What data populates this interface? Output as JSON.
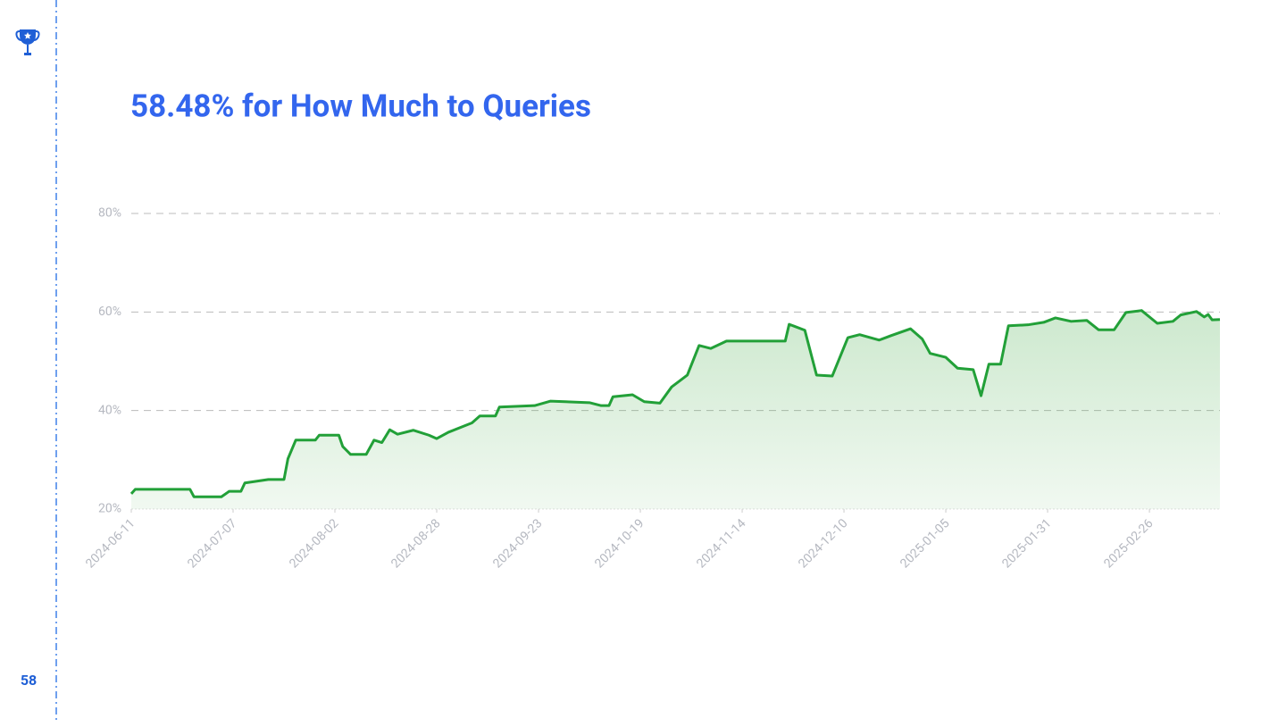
{
  "slide_number": "58",
  "chart_data": {
    "type": "area",
    "title": "58.48% for How Much to Queries",
    "x": [
      "2024-06-11",
      "2024-06-12",
      "2024-06-26",
      "2024-06-27",
      "2024-07-04",
      "2024-07-06",
      "2024-07-09",
      "2024-07-10",
      "2024-07-16",
      "2024-07-20",
      "2024-07-21",
      "2024-07-23",
      "2024-07-28",
      "2024-07-29",
      "2024-08-03",
      "2024-08-04",
      "2024-08-06",
      "2024-08-10",
      "2024-08-12",
      "2024-08-14",
      "2024-08-16",
      "2024-08-18",
      "2024-08-22",
      "2024-08-26",
      "2024-08-28",
      "2024-08-31",
      "2024-09-06",
      "2024-09-08",
      "2024-09-12",
      "2024-09-13",
      "2024-09-22",
      "2024-09-26",
      "2024-10-06",
      "2024-10-09",
      "2024-10-11",
      "2024-10-12",
      "2024-10-17",
      "2024-10-20",
      "2024-10-24",
      "2024-10-27",
      "2024-10-31",
      "2024-11-03",
      "2024-11-06",
      "2024-11-10",
      "2024-11-25",
      "2024-11-26",
      "2024-11-30",
      "2024-12-03",
      "2024-12-07",
      "2024-12-11",
      "2024-12-14",
      "2024-12-19",
      "2024-12-22",
      "2024-12-27",
      "2024-12-30",
      "2025-01-01",
      "2025-01-05",
      "2025-01-08",
      "2025-01-12",
      "2025-01-14",
      "2025-01-16",
      "2025-01-19",
      "2025-01-21",
      "2025-01-26",
      "2025-01-30",
      "2025-02-02",
      "2025-02-06",
      "2025-02-10",
      "2025-02-13",
      "2025-02-17",
      "2025-02-20",
      "2025-02-24",
      "2025-02-28",
      "2025-03-04",
      "2025-03-06",
      "2025-03-10",
      "2025-03-12",
      "2025-03-13",
      "2025-03-14",
      "2025-03-16"
    ],
    "series": [
      {
        "color": "#22a038",
        "values": [
          23.1,
          24.0,
          24.0,
          22.5,
          22.5,
          23.6,
          23.6,
          25.3,
          26.0,
          26.0,
          30.2,
          34.0,
          34.0,
          35.0,
          35.0,
          32.7,
          31.1,
          31.1,
          34.0,
          33.5,
          36.1,
          35.2,
          36.0,
          35.0,
          34.3,
          35.6,
          37.5,
          38.9,
          38.9,
          40.7,
          41.0,
          41.9,
          41.6,
          41.0,
          41.0,
          42.8,
          43.2,
          41.8,
          41.5,
          44.8,
          47.2,
          53.2,
          52.6,
          54.1,
          54.1,
          57.5,
          56.3,
          47.2,
          47.0,
          54.8,
          55.4,
          54.3,
          55.2,
          56.6,
          54.5,
          51.6,
          50.8,
          48.6,
          48.3,
          43.0,
          49.4,
          49.4,
          57.2,
          57.4,
          57.9,
          58.8,
          58.1,
          58.3,
          56.4,
          56.4,
          59.9,
          60.3,
          57.7,
          58.1,
          59.4,
          60.1,
          59.0,
          59.5,
          58.4,
          58.48
        ]
      }
    ],
    "xlim": [
      "2024-06-11",
      "2025-03-16"
    ],
    "xticks": [
      "2024-06-11",
      "2024-07-07",
      "2024-08-02",
      "2024-08-28",
      "2024-09-23",
      "2024-10-19",
      "2024-11-14",
      "2024-12-10",
      "2025-01-05",
      "2025-01-31",
      "2025-02-26"
    ],
    "ylim": [
      20,
      80
    ],
    "yticks": [
      {
        "value": 20,
        "label": "20%"
      },
      {
        "value": 40,
        "label": "40%"
      },
      {
        "value": 60,
        "label": "60%"
      },
      {
        "value": 80,
        "label": "80%"
      }
    ],
    "grid": true
  }
}
